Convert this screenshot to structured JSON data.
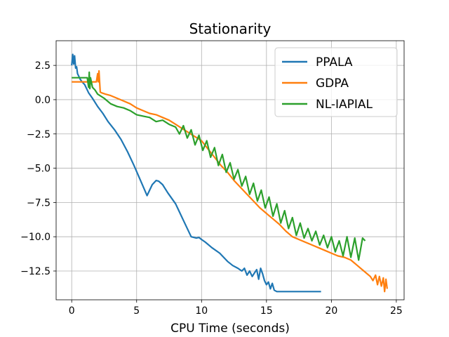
{
  "chart_data": {
    "type": "line",
    "title": "Stationarity",
    "xlabel": "CPU Time (seconds)",
    "ylabel": "",
    "xlim": [
      -1.2,
      25.6
    ],
    "ylim": [
      -14.6,
      4.3
    ],
    "x_ticks": [
      0,
      5,
      10,
      15,
      20,
      25
    ],
    "x_tick_labels": [
      "0",
      "5",
      "10",
      "15",
      "20",
      "25"
    ],
    "y_ticks": [
      2.5,
      0.0,
      -2.5,
      -5.0,
      -7.5,
      -10.0,
      -12.5
    ],
    "y_tick_labels": [
      "2.5",
      "0.0",
      "−2.5",
      "−5.0",
      "−7.5",
      "−10.0",
      "−12.5"
    ],
    "grid": true,
    "legend_position": "top-right",
    "series": [
      {
        "name": "PPALA",
        "color": "#1f77b4",
        "x": [
          0.0,
          0.08,
          0.15,
          0.22,
          0.3,
          0.38,
          0.45,
          0.55,
          0.65,
          0.8,
          1.0,
          1.3,
          1.6,
          2.0,
          2.4,
          2.8,
          3.3,
          3.8,
          4.3,
          4.8,
          5.3,
          5.8,
          6.2,
          6.5,
          6.7,
          7.0,
          7.4,
          8.0,
          8.6,
          9.2,
          9.6,
          9.8,
          10.0,
          10.3,
          10.8,
          11.4,
          12.0,
          12.4,
          12.8,
          13.1,
          13.3,
          13.5,
          13.7,
          13.9,
          14.1,
          14.25,
          14.4,
          14.55,
          14.7,
          14.85,
          15.0,
          15.15,
          15.3,
          15.45,
          15.6,
          15.8,
          16.5,
          17.5,
          18.5,
          19.2
        ],
        "y": [
          2.5,
          3.3,
          2.6,
          3.2,
          2.3,
          2.4,
          1.9,
          1.7,
          1.5,
          1.3,
          1.1,
          0.5,
          0.1,
          -0.5,
          -1.0,
          -1.6,
          -2.2,
          -2.9,
          -3.8,
          -4.8,
          -5.9,
          -7.0,
          -6.2,
          -5.9,
          -5.95,
          -6.2,
          -6.8,
          -7.6,
          -8.8,
          -10.0,
          -10.1,
          -10.05,
          -10.2,
          -10.4,
          -10.8,
          -11.2,
          -11.8,
          -12.1,
          -12.3,
          -12.5,
          -12.3,
          -12.8,
          -12.5,
          -12.9,
          -12.6,
          -12.4,
          -13.1,
          -12.3,
          -12.7,
          -13.2,
          -13.5,
          -13.3,
          -13.8,
          -13.4,
          -13.9,
          -14.0,
          -14.0,
          -14.0,
          -14.0,
          -14.0
        ]
      },
      {
        "name": "GDPA",
        "color": "#ff7f0e",
        "x": [
          0.0,
          0.5,
          1.0,
          1.5,
          1.9,
          2.0,
          2.05,
          2.1,
          2.15,
          2.2,
          2.3,
          2.6,
          3.0,
          3.5,
          4.0,
          4.5,
          5.0,
          5.5,
          6.0,
          6.5,
          7.0,
          7.5,
          8.0,
          8.5,
          9.0,
          9.5,
          10.0,
          10.5,
          11.0,
          11.5,
          12.0,
          12.5,
          13.0,
          13.5,
          14.0,
          14.5,
          15.0,
          15.5,
          16.0,
          16.5,
          17.0,
          17.5,
          18.0,
          18.5,
          19.0,
          19.5,
          20.0,
          20.5,
          21.0,
          21.5,
          22.0,
          22.5,
          23.0,
          23.2,
          23.4,
          23.55,
          23.7,
          23.85,
          24.0,
          24.1,
          24.2,
          24.3
        ],
        "y": [
          1.3,
          1.3,
          1.3,
          1.3,
          1.3,
          1.9,
          1.3,
          2.1,
          1.3,
          0.55,
          0.5,
          0.4,
          0.3,
          0.1,
          -0.1,
          -0.3,
          -0.6,
          -0.8,
          -1.0,
          -1.1,
          -1.3,
          -1.5,
          -1.8,
          -2.1,
          -2.4,
          -2.7,
          -3.0,
          -3.6,
          -4.2,
          -4.8,
          -5.3,
          -5.9,
          -6.4,
          -6.9,
          -7.4,
          -7.9,
          -8.3,
          -8.7,
          -9.1,
          -9.6,
          -10.0,
          -10.2,
          -10.4,
          -10.6,
          -10.8,
          -11.0,
          -11.2,
          -11.4,
          -11.5,
          -11.7,
          -12.1,
          -12.5,
          -12.9,
          -13.2,
          -12.8,
          -13.5,
          -12.9,
          -13.6,
          -13.0,
          -14.0,
          -13.1,
          -13.8
        ]
      },
      {
        "name": "NL-IAPIAL",
        "color": "#2ca02c",
        "x": [
          0.0,
          0.5,
          1.0,
          1.2,
          1.3,
          1.35,
          1.4,
          1.45,
          1.6,
          1.8,
          2.0,
          2.5,
          3.0,
          3.5,
          4.0,
          4.5,
          5.0,
          5.5,
          6.0,
          6.5,
          7.0,
          7.5,
          8.0,
          8.3,
          8.6,
          8.9,
          9.2,
          9.5,
          9.8,
          10.1,
          10.4,
          10.7,
          11.0,
          11.3,
          11.6,
          11.9,
          12.2,
          12.5,
          12.8,
          13.1,
          13.4,
          13.7,
          14.0,
          14.3,
          14.6,
          14.9,
          15.2,
          15.5,
          15.8,
          16.1,
          16.4,
          16.7,
          17.0,
          17.3,
          17.6,
          17.9,
          18.2,
          18.5,
          18.8,
          19.1,
          19.4,
          19.7,
          20.0,
          20.3,
          20.6,
          20.9,
          21.2,
          21.5,
          21.8,
          22.1,
          22.4,
          22.6
        ],
        "y": [
          1.6,
          1.6,
          1.6,
          1.6,
          0.9,
          2.0,
          0.8,
          1.6,
          0.9,
          0.7,
          0.4,
          0.1,
          -0.3,
          -0.5,
          -0.6,
          -0.8,
          -1.1,
          -1.2,
          -1.3,
          -1.6,
          -1.5,
          -1.8,
          -2.0,
          -2.5,
          -1.9,
          -2.8,
          -2.2,
          -3.3,
          -2.6,
          -3.7,
          -3.0,
          -4.2,
          -3.5,
          -4.8,
          -4.0,
          -5.3,
          -4.6,
          -5.8,
          -5.1,
          -6.3,
          -5.6,
          -6.9,
          -6.1,
          -7.4,
          -6.6,
          -7.9,
          -7.1,
          -8.5,
          -7.6,
          -9.0,
          -8.1,
          -9.4,
          -8.6,
          -9.9,
          -9.0,
          -10.1,
          -9.4,
          -10.3,
          -9.6,
          -10.6,
          -9.9,
          -10.8,
          -10.0,
          -11.1,
          -10.3,
          -11.4,
          -10.0,
          -11.5,
          -10.1,
          -11.7,
          -10.1,
          -10.3
        ]
      }
    ]
  }
}
